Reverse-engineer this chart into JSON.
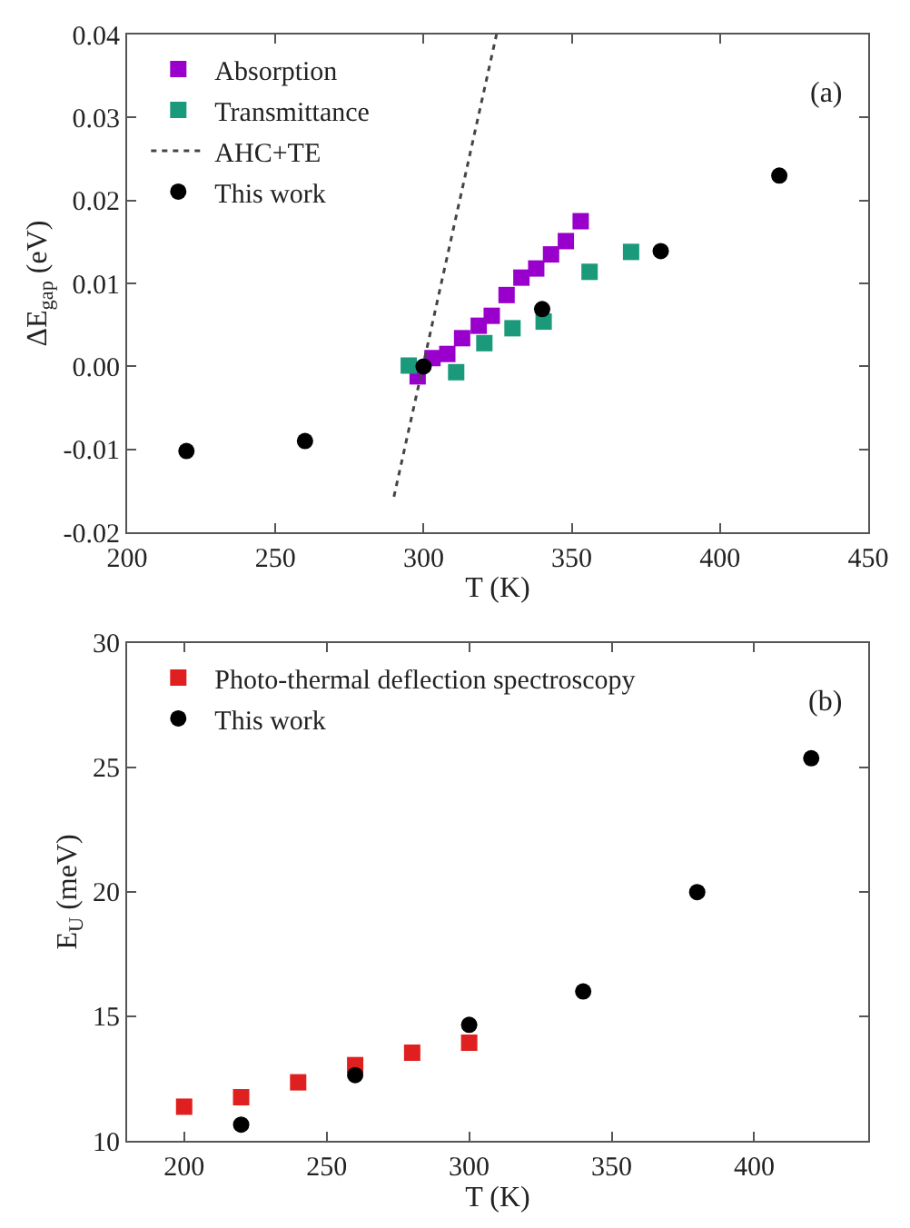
{
  "chart_data": [
    {
      "type": "scatter",
      "xlabel": "T (K)",
      "ylabel": "ΔE$_{gap}$ (eV)",
      "annotations": [
        "(a)"
      ],
      "legend": "top left",
      "xlim": [
        200,
        450
      ],
      "xticks": [
        200,
        250,
        300,
        350,
        400,
        450
      ],
      "ylim": [
        -0.02,
        0.04
      ],
      "yticks": [
        {
          "value": -0.02,
          "label": "-0.02"
        },
        {
          "value": -0.01,
          "label": "-0.01"
        },
        {
          "value": 0,
          "label": "0.00"
        },
        {
          "value": 0.01,
          "label": "0.01"
        },
        {
          "value": 0.02,
          "label": "0.02"
        },
        {
          "value": 0.03,
          "label": "0.03"
        },
        {
          "value": 0.04,
          "label": "0.04"
        }
      ],
      "series": [
        {
          "name": "Absorption",
          "color": "#9900cc",
          "marker": "square",
          "x": [
            298,
            303,
            308,
            313,
            318.6,
            323,
            328,
            333,
            338,
            343,
            348,
            353
          ],
          "values": [
            -0.0012,
            0.001,
            0.0015,
            0.0034,
            0.0049,
            0.0061,
            0.0086,
            0.0107,
            0.0118,
            0.0135,
            0.0151,
            0.0175
          ]
        },
        {
          "name": "Transmittance",
          "color": "#1a9a7a",
          "marker": "square",
          "x": [
            295,
            311,
            320.5,
            330,
            340.5,
            356,
            370
          ],
          "values": [
            0.0001,
            -0.0007,
            0.0028,
            0.0046,
            0.0054,
            0.0114,
            0.0138
          ]
        },
        {
          "name": "AHC+TE",
          "color": "#444444",
          "type": "line",
          "line_style": "dotted",
          "marker": "none",
          "x": [
            290,
            324.6
          ],
          "values": [
            -0.0157,
            0.04
          ]
        },
        {
          "name": "This work",
          "color": "#000000",
          "marker": "circle",
          "x": [
            220,
            260,
            300,
            340,
            380,
            420
          ],
          "values": [
            -0.0102,
            -0.009,
            0,
            0.0069,
            0.0139,
            0.023
          ]
        }
      ]
    },
    {
      "type": "scatter",
      "xlabel": "T (K)",
      "ylabel": "E$_{U}$ (meV)",
      "annotations": [
        "(b)"
      ],
      "legend": "top left",
      "xlim": [
        180,
        440
      ],
      "xticks": [
        200,
        250,
        300,
        350,
        400
      ],
      "ylim": [
        10,
        30
      ],
      "yticks": [
        10,
        15,
        20,
        25,
        30
      ],
      "series": [
        {
          "name": "Photo-thermal deflection spectroscopy",
          "color": "#e02020",
          "marker": "square",
          "x": [
            200,
            220,
            240,
            260,
            280,
            300
          ],
          "values": [
            11.37,
            11.75,
            12.35,
            13.04,
            13.54,
            13.94
          ]
        },
        {
          "name": "This work",
          "color": "#000000",
          "marker": "circle",
          "x": [
            220,
            260,
            300,
            340,
            380,
            420
          ],
          "values": [
            10.65,
            12.64,
            14.66,
            16.0,
            19.99,
            25.37
          ]
        }
      ]
    }
  ]
}
